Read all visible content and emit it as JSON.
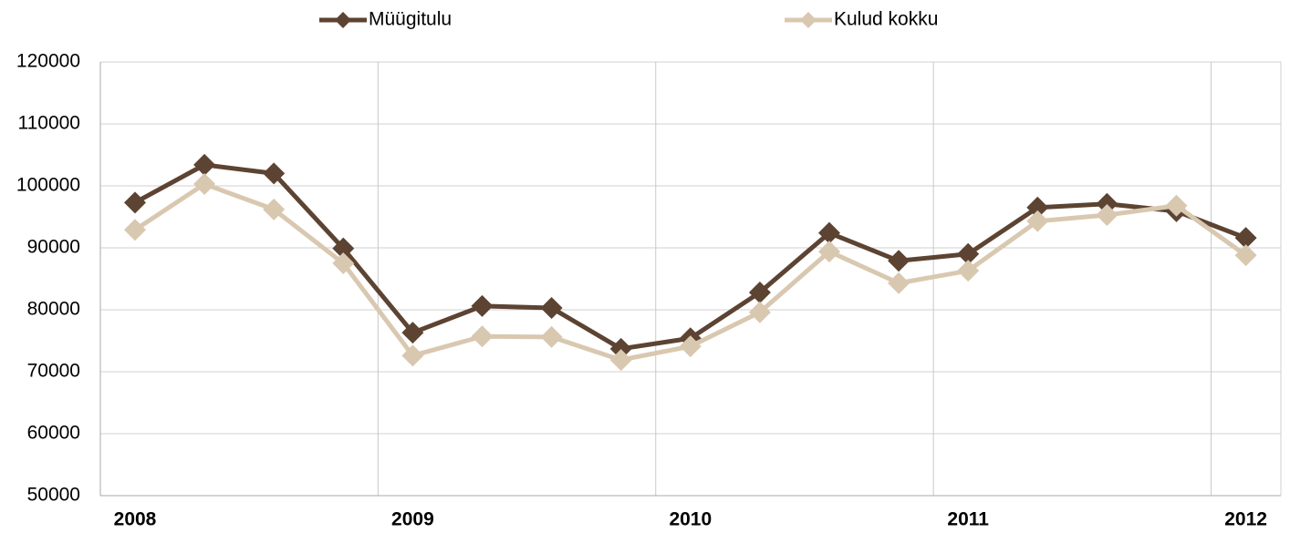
{
  "chart_data": {
    "type": "line",
    "categories": [
      "2008",
      null,
      null,
      null,
      "2009",
      null,
      null,
      null,
      "2010",
      null,
      null,
      null,
      "2011",
      null,
      null,
      null,
      "2012"
    ],
    "series": [
      {
        "name": "Müügitulu",
        "color": "#5c4332",
        "values": [
          97300,
          103400,
          102000,
          89900,
          76300,
          80600,
          80300,
          73700,
          75400,
          82800,
          92400,
          87900,
          89000,
          96500,
          97100,
          95900,
          91600
        ]
      },
      {
        "name": "Kulud kokku",
        "color": "#d9c8b0",
        "values": [
          92900,
          100300,
          96200,
          87500,
          72600,
          75700,
          75600,
          71900,
          74100,
          79600,
          89400,
          84300,
          86300,
          94300,
          95300,
          96800,
          88800
        ]
      }
    ],
    "ylim": [
      50000,
      120000
    ],
    "yticks": [
      50000,
      60000,
      70000,
      80000,
      90000,
      100000,
      110000,
      120000
    ],
    "grid": true,
    "legend": "top"
  }
}
